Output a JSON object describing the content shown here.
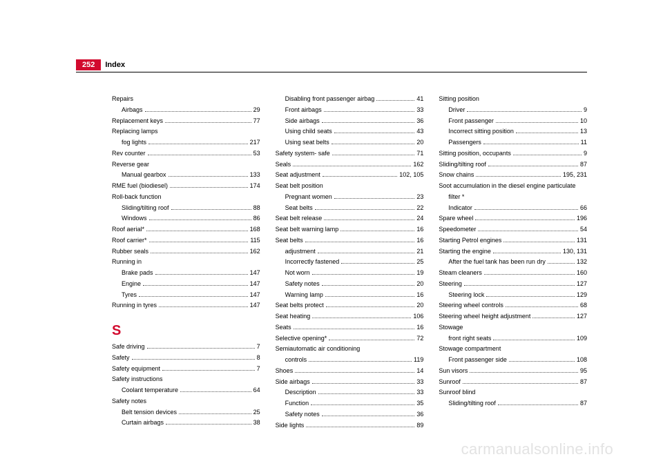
{
  "header": {
    "page_number": "252",
    "title": "Index"
  },
  "columns": [
    [
      {
        "label": "Repairs",
        "page": "",
        "nodots": true
      },
      {
        "label": "Airbags",
        "page": "29",
        "sub": true
      },
      {
        "label": "Replacement keys",
        "page": "77"
      },
      {
        "label": "Replacing lamps",
        "page": "",
        "nodots": true
      },
      {
        "label": "fog lights",
        "page": "217",
        "sub": true
      },
      {
        "label": "Rev counter",
        "page": "53"
      },
      {
        "label": "Reverse gear",
        "page": "",
        "nodots": true
      },
      {
        "label": "Manual gearbox",
        "page": "133",
        "sub": true
      },
      {
        "label": "RME fuel (biodiesel)",
        "page": "174"
      },
      {
        "label": "Roll-back function",
        "page": "",
        "nodots": true
      },
      {
        "label": "Sliding/tilting roof",
        "page": "88",
        "sub": true
      },
      {
        "label": "Windows",
        "page": "86",
        "sub": true
      },
      {
        "label": "Roof aerial*",
        "page": "168"
      },
      {
        "label": "Roof carrier*",
        "page": "115"
      },
      {
        "label": "Rubber seals",
        "page": "162"
      },
      {
        "label": "Running in",
        "page": "",
        "nodots": true
      },
      {
        "label": "Brake pads",
        "page": "147",
        "sub": true
      },
      {
        "label": "Engine",
        "page": "147",
        "sub": true
      },
      {
        "label": "Tyres",
        "page": "147",
        "sub": true
      },
      {
        "label": "Running in tyres",
        "page": "147"
      },
      {
        "label": "S",
        "letter": true
      },
      {
        "label": "Safe driving",
        "page": "7"
      },
      {
        "label": "Safety",
        "page": "8"
      },
      {
        "label": "Safety equipment",
        "page": "7"
      },
      {
        "label": "Safety instructions",
        "page": "",
        "nodots": true
      },
      {
        "label": "Coolant temperature",
        "page": "64",
        "sub": true
      },
      {
        "label": "Safety notes",
        "page": "",
        "nodots": true
      },
      {
        "label": "Belt tension devices",
        "page": "25",
        "sub": true
      },
      {
        "label": "Curtain airbags",
        "page": "38",
        "sub": true
      }
    ],
    [
      {
        "label": "Disabling front passenger airbag",
        "page": "41",
        "sub": true
      },
      {
        "label": "Front airbags",
        "page": "33",
        "sub": true
      },
      {
        "label": "Side airbags",
        "page": "36",
        "sub": true
      },
      {
        "label": "Using child seats",
        "page": "43",
        "sub": true
      },
      {
        "label": "Using seat belts",
        "page": "20",
        "sub": true
      },
      {
        "label": "Safety system- safe",
        "page": "71"
      },
      {
        "label": "Seals",
        "page": "162"
      },
      {
        "label": "Seat adjustment",
        "page": "102, 105"
      },
      {
        "label": "Seat belt position",
        "page": "",
        "nodots": true
      },
      {
        "label": "Pregnant women",
        "page": "23",
        "sub": true
      },
      {
        "label": "Seat belts",
        "page": "22",
        "sub": true
      },
      {
        "label": "Seat belt release",
        "page": "24"
      },
      {
        "label": "Seat belt warning lamp",
        "page": "16"
      },
      {
        "label": "Seat belts",
        "page": "16"
      },
      {
        "label": "adjustment",
        "page": "21",
        "sub": true
      },
      {
        "label": "Incorrectly fastened",
        "page": "25",
        "sub": true
      },
      {
        "label": "Not worn",
        "page": "19",
        "sub": true
      },
      {
        "label": "Safety notes",
        "page": "20",
        "sub": true
      },
      {
        "label": "Warning lamp",
        "page": "16",
        "sub": true
      },
      {
        "label": "Seat belts protect",
        "page": "20"
      },
      {
        "label": "Seat heating",
        "page": "106"
      },
      {
        "label": "Seats",
        "page": "16"
      },
      {
        "label": "Selective opening*",
        "page": "72"
      },
      {
        "label": "Semiautomatic air conditioning",
        "page": "",
        "nodots": true
      },
      {
        "label": "controls",
        "page": "119",
        "sub": true
      },
      {
        "label": "Shoes",
        "page": "14"
      },
      {
        "label": "Side airbags",
        "page": "33"
      },
      {
        "label": "Description",
        "page": "33",
        "sub": true
      },
      {
        "label": "Function",
        "page": "35",
        "sub": true
      },
      {
        "label": "Safety notes",
        "page": "36",
        "sub": true
      },
      {
        "label": "Side lights",
        "page": "89"
      }
    ],
    [
      {
        "label": "Sitting position",
        "page": "",
        "nodots": true
      },
      {
        "label": "Driver",
        "page": "9",
        "sub": true
      },
      {
        "label": "Front passenger",
        "page": "10",
        "sub": true
      },
      {
        "label": "Incorrect sitting position",
        "page": "13",
        "sub": true
      },
      {
        "label": "Passengers",
        "page": "11",
        "sub": true
      },
      {
        "label": "Sitting position, occupants",
        "page": "9"
      },
      {
        "label": "Sliding/tilting roof",
        "page": "87"
      },
      {
        "label": "Snow chains",
        "page": "195, 231"
      },
      {
        "label": "Soot accumulation in the diesel engine particulate",
        "page": "",
        "nodots": true
      },
      {
        "label": "filter *",
        "page": "",
        "sub": true,
        "nodots": true
      },
      {
        "label": "Indicator",
        "page": "66",
        "sub": true
      },
      {
        "label": "Spare wheel",
        "page": "196"
      },
      {
        "label": "Speedometer",
        "page": "54"
      },
      {
        "label": "Starting Petrol engines",
        "page": "131"
      },
      {
        "label": "Starting the engine",
        "page": "130, 131"
      },
      {
        "label": "After the fuel tank has been run dry",
        "page": "132",
        "sub": true
      },
      {
        "label": "Steam cleaners",
        "page": "160"
      },
      {
        "label": "Steering",
        "page": "127"
      },
      {
        "label": "Steering lock",
        "page": "129",
        "sub": true
      },
      {
        "label": "Steering wheel controls",
        "page": "68"
      },
      {
        "label": "Steering wheel height adjustment",
        "page": "127"
      },
      {
        "label": "Stowage",
        "page": "",
        "nodots": true
      },
      {
        "label": "front right seats",
        "page": "109",
        "sub": true
      },
      {
        "label": "Stowage compartment",
        "page": "",
        "nodots": true
      },
      {
        "label": "Front passenger side",
        "page": "108",
        "sub": true
      },
      {
        "label": "Sun visors",
        "page": "95"
      },
      {
        "label": "Sunroof",
        "page": "87"
      },
      {
        "label": "Sunroof blind",
        "page": "",
        "nodots": true
      },
      {
        "label": "Sliding/tilting roof",
        "page": "87",
        "sub": true
      }
    ]
  ],
  "watermark": "carmanualsonline.info"
}
